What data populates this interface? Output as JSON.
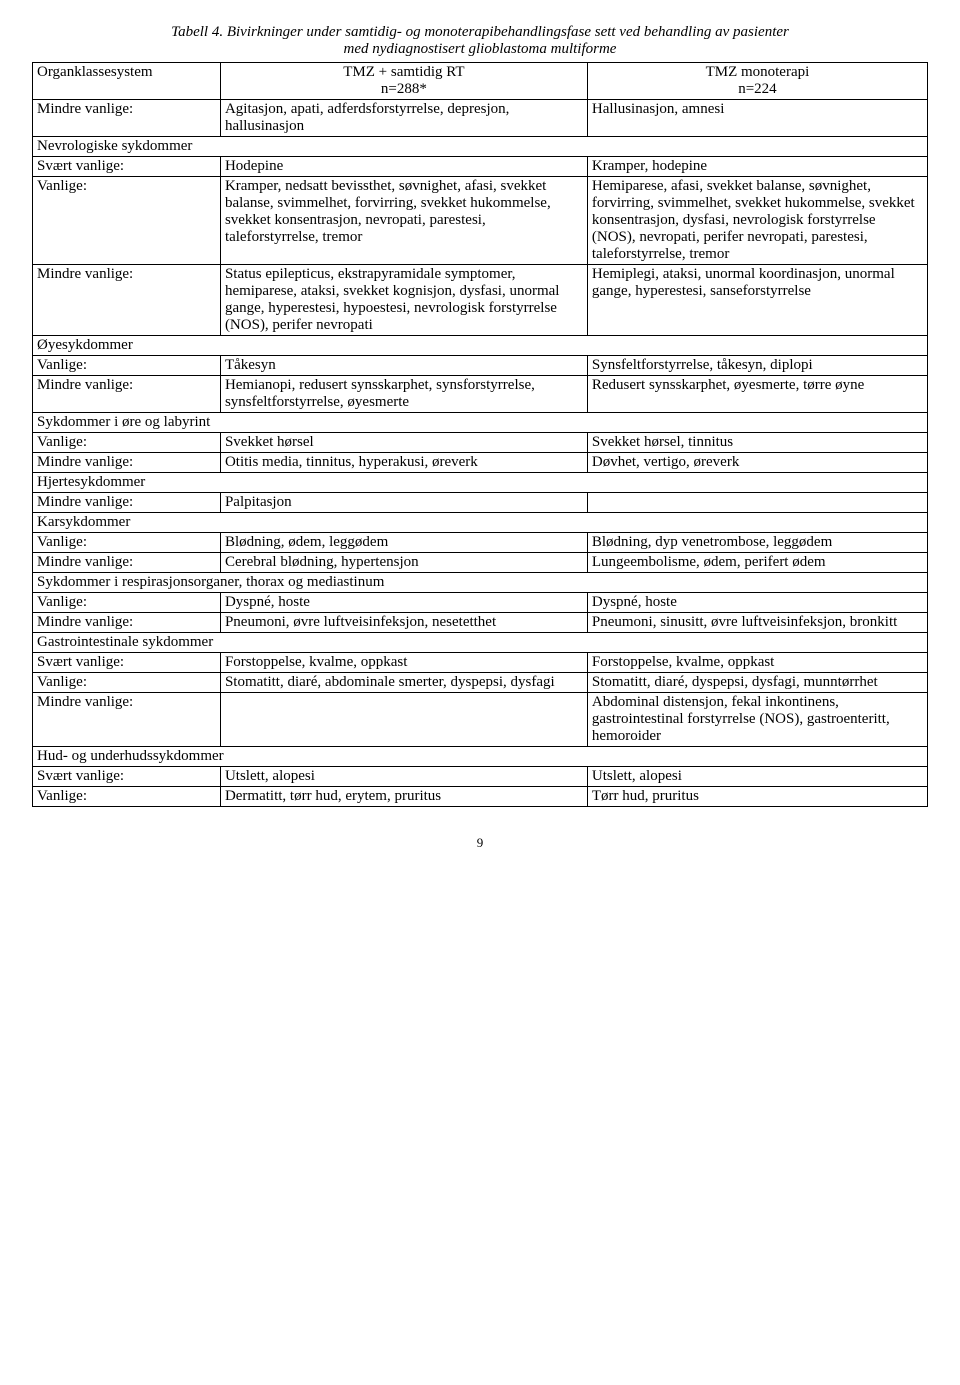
{
  "title_line1": "Tabell 4. Bivirkninger under samtidig- og monoterapibehandlingsfase sett ved behandling av pasienter",
  "title_line2": "med nydiagnostisert glioblastoma multiforme",
  "header": {
    "c1": "Organklassesystem",
    "c2a": "TMZ + samtidig RT",
    "c2b": "n=288*",
    "c3a": "TMZ monoterapi",
    "c3b": "n=224"
  },
  "rows": [
    {
      "c1": "Mindre vanlige:",
      "c2": "Agitasjon, apati, adferdsforstyrrelse, depresjon, hallusinasjon",
      "c3": "Hallusinasjon, amnesi"
    },
    {
      "span": "Nevrologiske sykdommer"
    },
    {
      "c1": "Svært vanlige:",
      "c2": "Hodepine",
      "c3": "Kramper, hodepine"
    },
    {
      "c1": "Vanlige:",
      "c2": "Kramper, nedsatt bevissthet, søvnighet, afasi, svekket balanse, svimmelhet, forvirring, svekket hukommelse, svekket konsentrasjon, nevropati, parestesi, taleforstyrrelse, tremor",
      "c3": "Hemiparese, afasi, svekket balanse, søvnighet, forvirring, svimmelhet, svekket hukommelse, svekket konsentrasjon, dysfasi, nevrologisk forstyrrelse (NOS), nevropati, perifer nevropati, parestesi, taleforstyrrelse, tremor"
    },
    {
      "c1": "Mindre vanlige:",
      "c2": "Status epilepticus, ekstrapyramidale symptomer, hemiparese, ataksi, svekket kognisjon, dysfasi, unormal gange, hyperestesi, hypoestesi, nevrologisk forstyrrelse (NOS), perifer nevropati",
      "c3": "Hemiplegi, ataksi, unormal koordinasjon, unormal gange, hyperestesi, sanseforstyrrelse"
    },
    {
      "span": "Øyesykdommer"
    },
    {
      "c1": "Vanlige:",
      "c2": "Tåkesyn",
      "c3": "Synsfeltforstyrrelse, tåkesyn, diplopi"
    },
    {
      "c1": "Mindre vanlige:",
      "c2": "Hemianopi, redusert synsskarphet, synsforstyrrelse, synsfeltforstyrrelse, øyesmerte",
      "c3": "Redusert synsskarphet, øyesmerte, tørre øyne"
    },
    {
      "span": "Sykdommer i øre og labyrint"
    },
    {
      "c1": "Vanlige:",
      "c2": "Svekket hørsel",
      "c3": "Svekket hørsel, tinnitus"
    },
    {
      "c1": "Mindre vanlige:",
      "c2": "Otitis media, tinnitus, hyperakusi, øreverk",
      "c3": "Døvhet, vertigo, øreverk"
    },
    {
      "span": "Hjertesykdommer"
    },
    {
      "c1": "Mindre vanlige:",
      "c2": "Palpitasjon",
      "c3": ""
    },
    {
      "span": "Karsykdommer"
    },
    {
      "c1": "Vanlige:",
      "c2": "Blødning, ødem, leggødem",
      "c3": "Blødning, dyp venetrombose, leggødem"
    },
    {
      "c1": "Mindre vanlige:",
      "c2": "Cerebral blødning, hypertensjon",
      "c3": "Lungeembolisme, ødem, perifert ødem"
    },
    {
      "span": "Sykdommer i respirasjonsorganer, thorax og mediastinum"
    },
    {
      "c1": "Vanlige:",
      "c2": "Dyspné, hoste",
      "c3": "Dyspné, hoste"
    },
    {
      "c1": "Mindre vanlige:",
      "c2": "Pneumoni, øvre luftveisinfeksjon, nesetetthet",
      "c3": "Pneumoni, sinusitt, øvre luftveisinfeksjon, bronkitt"
    },
    {
      "span": "Gastrointestinale sykdommer"
    },
    {
      "c1": "Svært vanlige:",
      "c2": "Forstoppelse, kvalme, oppkast",
      "c3": "Forstoppelse, kvalme, oppkast"
    },
    {
      "c1": "Vanlige:",
      "c2": "Stomatitt, diaré, abdominale smerter, dyspepsi, dysfagi",
      "c3": "Stomatitt, diaré, dyspepsi, dysfagi, munntørrhet"
    },
    {
      "c1": "Mindre vanlige:",
      "c2": "",
      "c3": "Abdominal distensjon, fekal inkontinens, gastrointestinal forstyrrelse (NOS), gastroenteritt, hemoroider"
    },
    {
      "span": "Hud- og underhudssykdommer"
    },
    {
      "c1": "Svært vanlige:",
      "c2": "Utslett, alopesi",
      "c3": "Utslett, alopesi"
    },
    {
      "c1": "Vanlige:",
      "c2": "Dermatitt, tørr hud, erytem, pruritus",
      "c3": "Tørr hud, pruritus"
    }
  ],
  "page_number": "9"
}
